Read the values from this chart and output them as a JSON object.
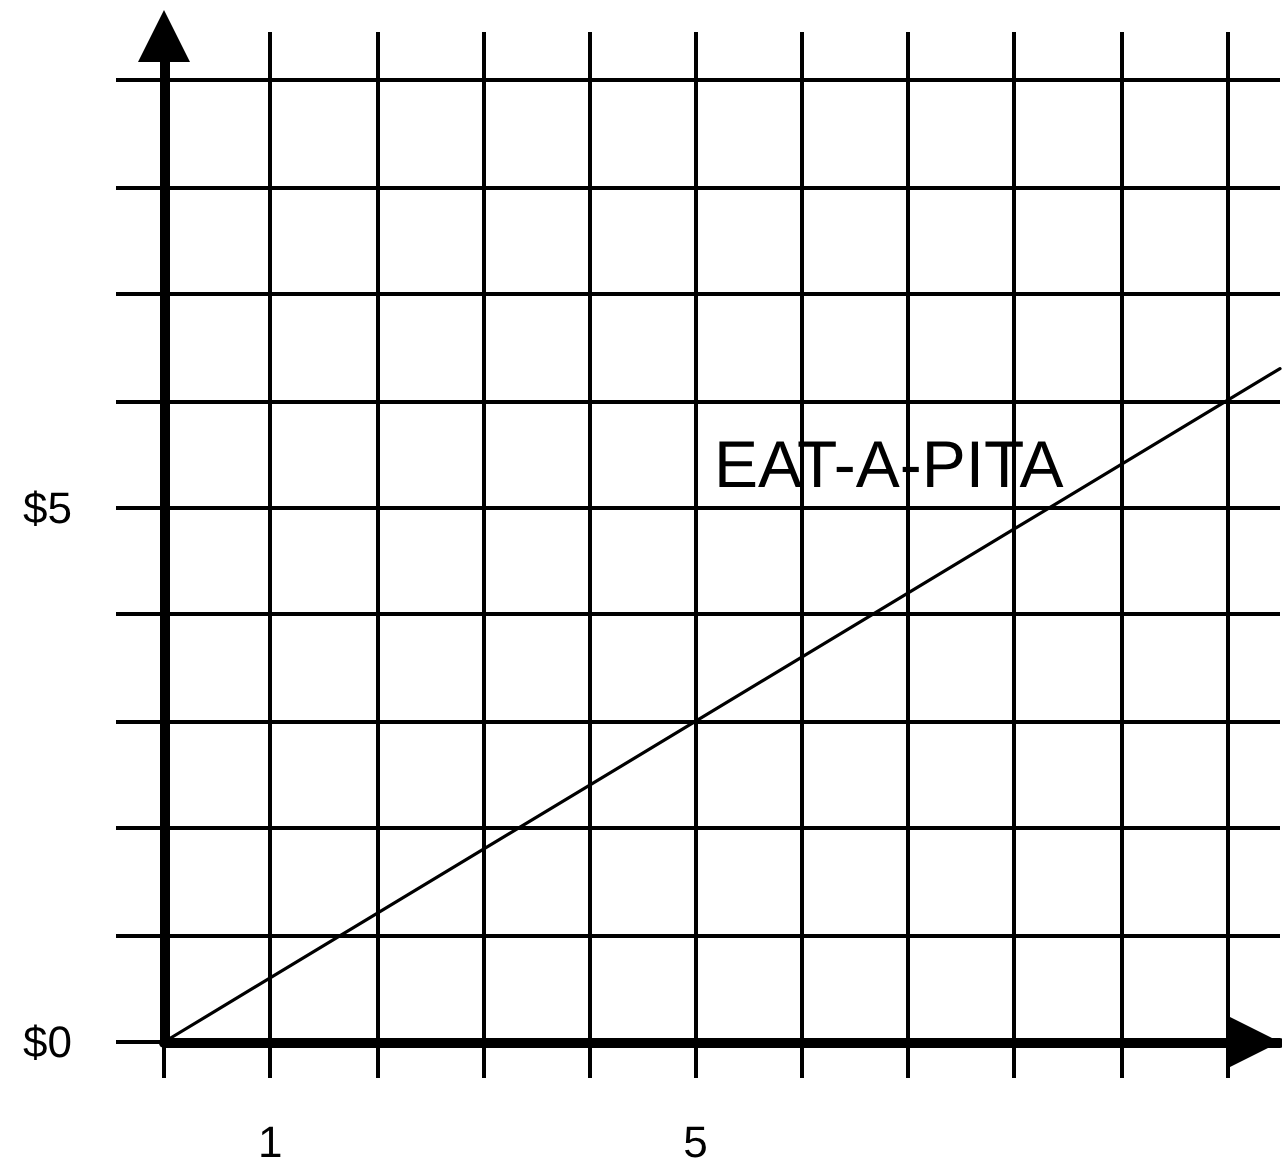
{
  "chart_data": {
    "type": "line",
    "x": [
      0,
      10.5
    ],
    "series": [
      {
        "name": "EAT-A-PITA",
        "color": "#000000",
        "values": [
          0,
          6.3
        ]
      }
    ],
    "xlim": [
      0,
      10.5
    ],
    "ylim": [
      0,
      9.45
    ],
    "xticks": [
      {
        "value": 0,
        "label": null
      },
      {
        "value": 1,
        "label": "1"
      },
      {
        "value": 2,
        "label": null
      },
      {
        "value": 3,
        "label": null
      },
      {
        "value": 4,
        "label": null
      },
      {
        "value": 5,
        "label": "5"
      },
      {
        "value": 6,
        "label": null
      },
      {
        "value": 7,
        "label": null
      },
      {
        "value": 8,
        "label": null
      },
      {
        "value": 9,
        "label": null
      },
      {
        "value": 10,
        "label": null
      }
    ],
    "yticks": [
      {
        "value": 0,
        "label": "$0"
      },
      {
        "value": 1,
        "label": null
      },
      {
        "value": 2,
        "label": null
      },
      {
        "value": 3,
        "label": null
      },
      {
        "value": 4,
        "label": null
      },
      {
        "value": 5,
        "label": "$5"
      },
      {
        "value": 6,
        "label": null
      },
      {
        "value": 7,
        "label": null
      },
      {
        "value": 8,
        "label": null
      },
      {
        "value": 9,
        "label": null
      }
    ],
    "grid": true,
    "marker": "none",
    "line_style": "solid"
  }
}
